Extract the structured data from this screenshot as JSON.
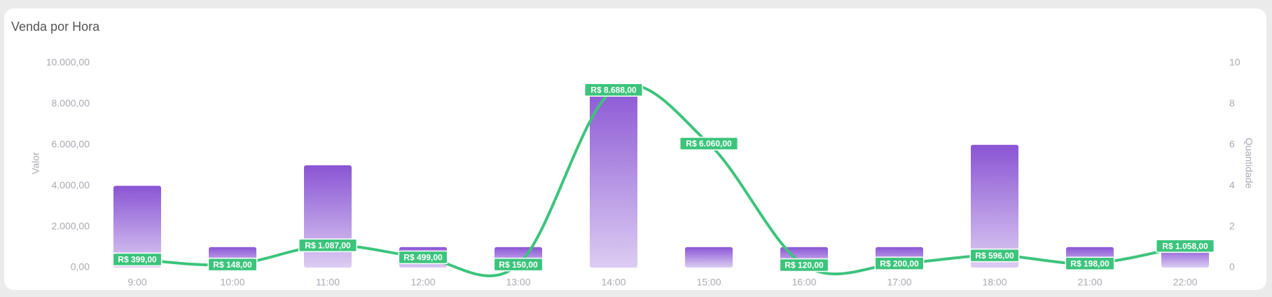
{
  "chart_data": {
    "type": "bar-line",
    "title": "Venda por Hora",
    "ylabel": "Valor",
    "y2label": "Quantidade",
    "categories": [
      "9:00",
      "10:00",
      "11:00",
      "12:00",
      "13:00",
      "14:00",
      "15:00",
      "16:00",
      "17:00",
      "18:00",
      "21:00",
      "22:00"
    ],
    "ylim": [
      0,
      10000
    ],
    "yticks": [
      {
        "value": 0,
        "label": "0,00"
      },
      {
        "value": 2000,
        "label": "2.000,00"
      },
      {
        "value": 4000,
        "label": "4.000,00"
      },
      {
        "value": 6000,
        "label": "6.000,00"
      },
      {
        "value": 8000,
        "label": "8.000,00"
      },
      {
        "value": 10000,
        "label": "10.000,00"
      }
    ],
    "y2lim": [
      0,
      10
    ],
    "y2ticks": [
      0,
      2,
      4,
      6,
      8,
      10
    ],
    "series": [
      {
        "type": "bar",
        "axis": "y2",
        "color": "#8a55d4",
        "values": [
          4,
          1,
          5,
          1,
          1,
          9,
          1,
          1,
          1,
          6,
          1,
          1
        ]
      },
      {
        "type": "line",
        "color": "#3cc47c",
        "values": [
          399,
          148,
          1087,
          499,
          150,
          8688,
          6060,
          120,
          200,
          596,
          198,
          1058
        ],
        "value_labels": [
          "R$ 399,00",
          "R$ 148,00",
          "R$ 1.087,00",
          "R$ 499,00",
          "R$ 150,00",
          "R$ 8.688,00",
          "R$ 6.060,00",
          "R$ 120,00",
          "R$ 200,00",
          "R$ 596,00",
          "R$ 198,00",
          "R$ 1.058,00"
        ]
      }
    ]
  }
}
